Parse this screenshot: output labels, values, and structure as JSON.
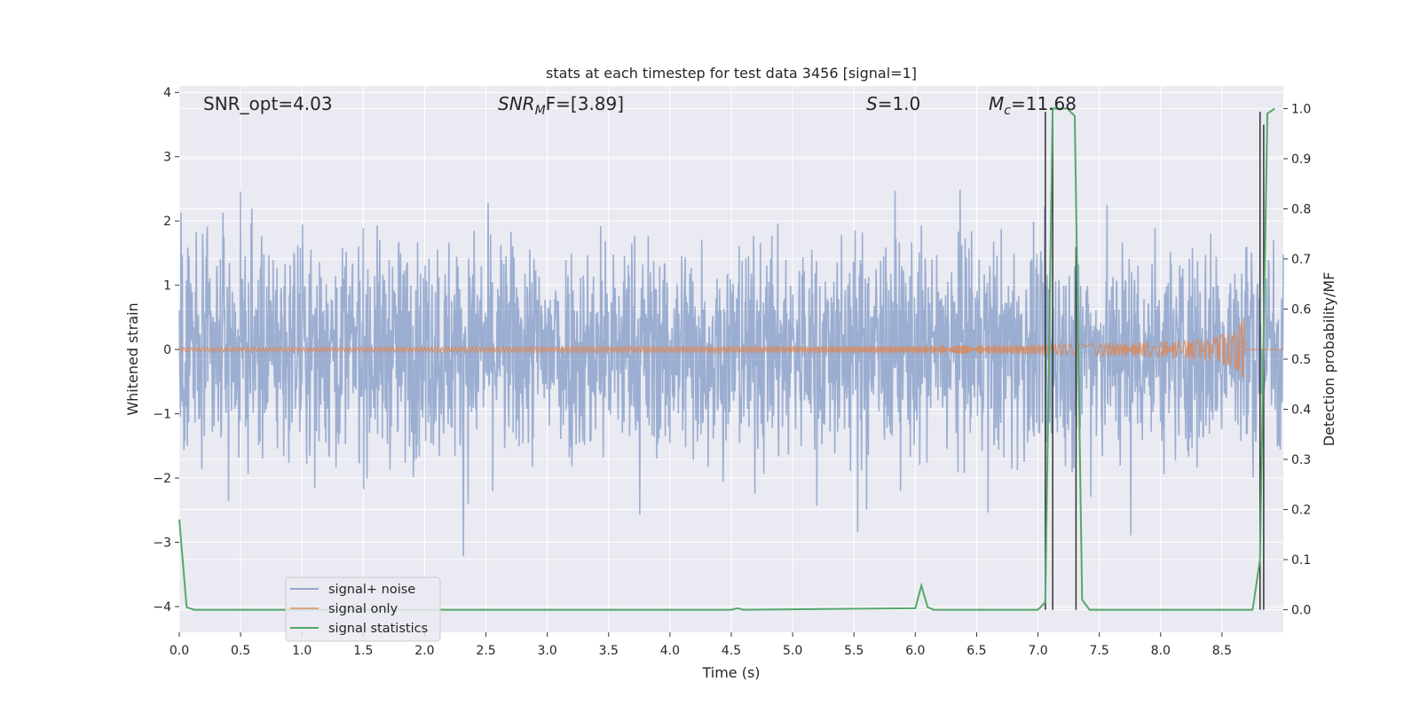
{
  "chart_data": {
    "type": "line",
    "title": "stats at each timestep for test data 3456 [signal=1]",
    "xlabel": "Time (s)",
    "ylabel": "Whitened strain",
    "y2label": "Detection probability/MF",
    "xlim": [
      0.0,
      9.0
    ],
    "ylim": [
      -4.4,
      4.1
    ],
    "y2lim": [
      -0.045,
      1.045
    ],
    "x_ticks": [
      "0.0",
      "0.5",
      "1.0",
      "1.5",
      "2.0",
      "2.5",
      "3.0",
      "3.5",
      "4.0",
      "4.5",
      "5.0",
      "5.5",
      "6.0",
      "6.5",
      "7.0",
      "7.5",
      "8.0",
      "8.5"
    ],
    "y_ticks": [
      "4",
      "3",
      "2",
      "1",
      "0",
      "−1",
      "−2",
      "−3",
      "−4"
    ],
    "y2_ticks": [
      "1.0",
      "0.9",
      "0.8",
      "0.7",
      "0.6",
      "0.5",
      "0.4",
      "0.3",
      "0.2",
      "0.1",
      "0.0"
    ],
    "grid": true,
    "legend_position": "lower-left",
    "annotations": {
      "snr_opt": "SNR_opt=4.03",
      "snr_mf_main": "SNR",
      "snr_mf_sub": "M",
      "snr_mf_rest": "F=[3.89]",
      "s_main": "S",
      "s_rest": "=1.0",
      "mc_main": "M",
      "mc_sub": "c",
      "mc_rest": "=11.68"
    },
    "series": [
      {
        "name": "signal+ noise",
        "color": "#4c72b0",
        "note_range": [
          -3.3,
          3.3
        ]
      },
      {
        "name": "signal only",
        "color": "#dd8452",
        "chirp_peak_time": 8.68,
        "chirp_peak_amplitude": 0.5
      },
      {
        "name": "signal statistics",
        "color": "#55a868",
        "axis": "right",
        "x": [
          0.0,
          0.06,
          0.12,
          4.5,
          4.55,
          4.6,
          6.0,
          6.05,
          6.1,
          6.15,
          7.0,
          7.06,
          7.12,
          7.18,
          7.24,
          7.3,
          7.36,
          7.42,
          8.75,
          8.81,
          8.87,
          8.93
        ],
        "y": [
          0.18,
          0.005,
          0.0,
          0.0,
          0.003,
          0.0,
          0.003,
          0.048,
          0.005,
          0.0,
          0.0,
          0.015,
          1.0,
          1.0,
          1.0,
          0.985,
          0.02,
          0.0,
          0.0,
          0.1,
          0.99,
          1.0
        ]
      }
    ],
    "markers": {
      "color": "#333333",
      "lines": [
        {
          "x": 7.06,
          "y_top": 3.7
        },
        {
          "x": 7.12,
          "y_top": 3.7
        },
        {
          "x": 7.31,
          "y_top": 1.6
        },
        {
          "x": 8.81,
          "y_top": 3.7
        },
        {
          "x": 8.84,
          "y_top": 3.5
        }
      ]
    },
    "colors": {
      "plot_background": "#eaeaf2",
      "grid": "#ffffff"
    }
  }
}
